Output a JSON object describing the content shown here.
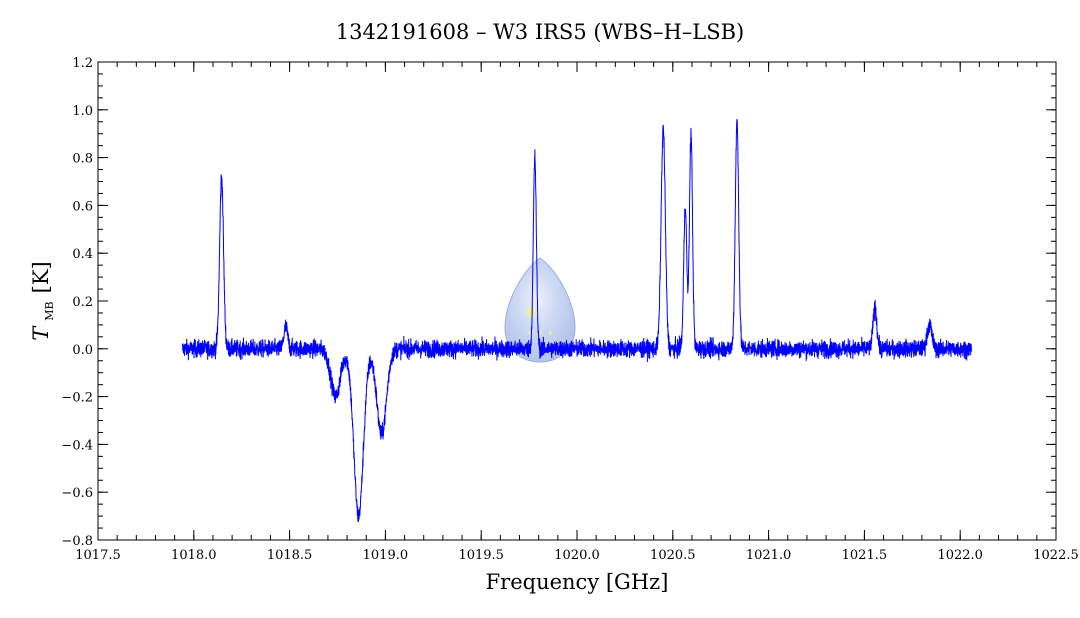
{
  "chart_data": {
    "type": "line",
    "title": "1342191608 – W3 IRS5 (WBS–H–LSB)",
    "xlabel": "Frequency [GHz]",
    "ylabel_main": "T",
    "ylabel_sub": "MB",
    "ylabel_unit": "[K]",
    "xlim": [
      1017.5,
      1022.5
    ],
    "ylim": [
      -0.8,
      1.2
    ],
    "xticks": [
      1017.5,
      1018.0,
      1018.5,
      1019.0,
      1019.5,
      1020.0,
      1020.5,
      1021.0,
      1021.5,
      1022.0,
      1022.5
    ],
    "xtick_labels": [
      "1017.5",
      "1018.0",
      "1018.5",
      "1019.0",
      "1019.5",
      "1020.0",
      "1020.5",
      "1021.0",
      "1021.5",
      "1022.0",
      "1022.5"
    ],
    "yticks": [
      -0.8,
      -0.6,
      -0.4,
      -0.2,
      0.0,
      0.2,
      0.4,
      0.6,
      0.8,
      1.0,
      1.2
    ],
    "ytick_labels": [
      "−0.8",
      "−0.6",
      "−0.4",
      "−0.2",
      "0.0",
      "0.2",
      "0.4",
      "0.6",
      "0.8",
      "1.0",
      "1.2"
    ],
    "grid": false,
    "series_color": "#0000ff",
    "x_range": [
      1017.94,
      1022.06
    ],
    "baseline_noise": 0.035,
    "emission_lines": [
      {
        "x": 1018.145,
        "peak": 0.72,
        "width": 0.01
      },
      {
        "x": 1018.48,
        "peak": 0.09,
        "width": 0.01
      },
      {
        "x": 1019.78,
        "peak": 0.8,
        "width": 0.008
      },
      {
        "x": 1020.45,
        "peak": 0.92,
        "width": 0.011
      },
      {
        "x": 1020.565,
        "peak": 0.6,
        "width": 0.008
      },
      {
        "x": 1020.595,
        "peak": 0.9,
        "width": 0.008
      },
      {
        "x": 1020.835,
        "peak": 0.95,
        "width": 0.009
      },
      {
        "x": 1021.555,
        "peak": 0.17,
        "width": 0.01
      },
      {
        "x": 1021.84,
        "peak": 0.1,
        "width": 0.012
      }
    ],
    "absorption_features": [
      {
        "x": 1018.74,
        "depth": -0.2,
        "width": 0.025
      },
      {
        "x": 1018.86,
        "depth": -0.7,
        "width": 0.025
      },
      {
        "x": 1018.98,
        "depth": -0.36,
        "width": 0.025
      }
    ],
    "watermark": "logo"
  }
}
